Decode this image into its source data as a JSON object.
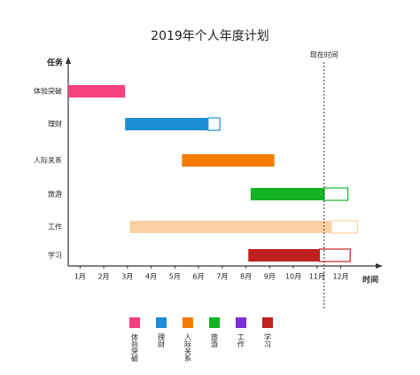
{
  "chart_data": {
    "type": "gantt",
    "title": "2019年个人年度计划",
    "y_label": "任务",
    "x_label": "时间",
    "xlim": [
      0.5,
      13.7
    ],
    "xticks": [
      {
        "value": 1,
        "label": "1月"
      },
      {
        "value": 2,
        "label": "2月"
      },
      {
        "value": 3,
        "label": "3月"
      },
      {
        "value": 4,
        "label": "4月"
      },
      {
        "value": 5,
        "label": "5月"
      },
      {
        "value": 6,
        "label": "6月"
      },
      {
        "value": 7,
        "label": "7月"
      },
      {
        "value": 8,
        "label": "8月"
      },
      {
        "value": 9,
        "label": "9月"
      },
      {
        "value": 10,
        "label": "10月"
      },
      {
        "value": 11,
        "label": "11月"
      },
      {
        "value": 12,
        "label": "12月"
      }
    ],
    "now": 11.3,
    "now_label": "现在时间",
    "tasks": [
      {
        "name": "体验突破",
        "color": "#f5407e",
        "legend_color": "#f5407e",
        "start": 0.5,
        "progress": 2.9,
        "end": 2.9
      },
      {
        "name": "理财",
        "color": "#1a8fd8",
        "legend_color": "#1a8fd8",
        "start": 2.9,
        "progress": 6.4,
        "end": 6.9
      },
      {
        "name": "人际关系",
        "color": "#f57c00",
        "legend_color": "#f57c00",
        "start": 5.3,
        "progress": 9.2,
        "end": 9.2
      },
      {
        "name": "旅游",
        "color": "#13b324",
        "legend_color": "#13b324",
        "start": 8.2,
        "progress": 11.3,
        "end": 12.3
      },
      {
        "name": "工作",
        "color": "#fdd0a4",
        "legend_color": "#7b2fd6",
        "start": 3.1,
        "progress": 11.6,
        "end": 12.7
      },
      {
        "name": "学习",
        "color": "#c0201e",
        "legend_color": "#c0201e",
        "start": 8.1,
        "progress": 11.1,
        "end": 12.4
      }
    ]
  }
}
